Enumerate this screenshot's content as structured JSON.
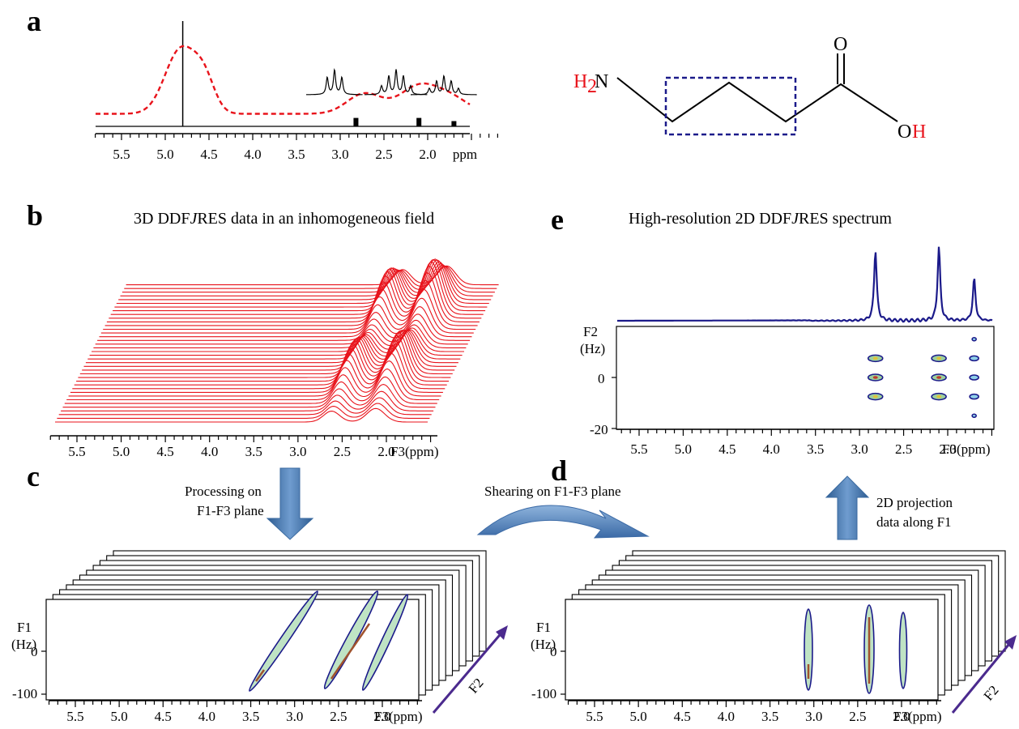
{
  "panels": {
    "a": {
      "letter": "a",
      "axis": {
        "ticks": [
          "5.5",
          "5.0",
          "4.5",
          "4.0",
          "3.5",
          "3.0",
          "2.5",
          "2.0",
          "ppm"
        ]
      },
      "spectrum": {
        "x_range_ppm": [
          5.8,
          1.15
        ],
        "solid_peaks": [
          {
            "ppm": 4.8,
            "height": 1.0
          },
          {
            "ppm": 2.82,
            "height": 0.08
          },
          {
            "ppm": 2.1,
            "height": 0.08
          },
          {
            "ppm": 1.7,
            "height": 0.05
          }
        ],
        "dashed_bands": [
          {
            "ppm": 4.82,
            "height": 0.64,
            "width": 0.18
          },
          {
            "ppm": 4.55,
            "height": 0.28,
            "width": 0.12
          },
          {
            "ppm": 2.72,
            "height": 0.2,
            "width": 0.2
          },
          {
            "ppm": 2.1,
            "height": 0.27,
            "width": 0.22
          },
          {
            "ppm": 1.72,
            "height": 0.14,
            "width": 0.2
          }
        ],
        "multiplet_insets": [
          {
            "center_ppm": 2.82,
            "lines": 3
          },
          {
            "center_ppm": 2.12,
            "lines": 5
          },
          {
            "center_ppm": 1.68,
            "lines": 5
          }
        ]
      },
      "molecule": {
        "left_group_sub": "H",
        "left_group_subscript": "2",
        "left_group_atom": "N",
        "carbonyl_o": "O",
        "hydroxyl_o": "O",
        "hydroxyl_h": "H"
      }
    },
    "b": {
      "letter": "b",
      "title_pre": "3D DDF",
      "title_j": "J",
      "title_post": "RES data in an inhomogeneous field",
      "axis": {
        "ticks": [
          "5.5",
          "5.0",
          "4.5",
          "4.0",
          "3.5",
          "3.0",
          "2.5",
          "2.0"
        ],
        "label": "F3(ppm)"
      },
      "stack": {
        "slices": 38,
        "peaks_ppm": [
          2.62,
          2.12
        ]
      }
    },
    "c": {
      "letter": "c",
      "arrow_label_1": "Processing on",
      "arrow_label_2": "F1-F3 plane",
      "y_label_1": "F1",
      "y_label_2": "(Hz)",
      "y_ticks": [
        "0",
        "-100"
      ],
      "axis": {
        "ticks": [
          "5.5",
          "5.0",
          "4.5",
          "4.0",
          "3.5",
          "3.0",
          "2.5",
          "2.0"
        ],
        "label": "F3(ppm)"
      },
      "diag_axis_label": "F2",
      "tilted_peaks_ppm": [
        2.82,
        2.12,
        1.72
      ]
    },
    "shear": {
      "label": "Shearing on F1-F3 plane"
    },
    "d": {
      "letter": "d",
      "y_label_1": "F1",
      "y_label_2": "(Hz)",
      "y_ticks": [
        "0",
        "-100"
      ],
      "axis": {
        "ticks": [
          "5.5",
          "5.0",
          "4.5",
          "4.0",
          "3.5",
          "3.0",
          "2.5",
          "2.0"
        ],
        "label": "F3(ppm)"
      },
      "diag_axis_label": "F2",
      "arrow_label_1": "2D projection",
      "arrow_label_2": "data along F1",
      "vertical_peaks_ppm": [
        2.82,
        2.12,
        1.72
      ]
    },
    "e": {
      "letter": "e",
      "title_pre": "High-resolution 2D DDF",
      "title_j": "J",
      "title_post": "RES spectrum",
      "y_label_1": "F2",
      "y_label_2": "(Hz)",
      "y_ticks": [
        "0",
        "-20"
      ],
      "axis": {
        "ticks": [
          "5.5",
          "5.0",
          "4.5",
          "4.0",
          "3.5",
          "3.0",
          "2.5",
          "2.0"
        ],
        "label": "F3(ppm)"
      },
      "projection_peaks": [
        {
          "ppm": 2.82,
          "height": 1.0
        },
        {
          "ppm": 2.1,
          "height": 1.05
        },
        {
          "ppm": 1.7,
          "height": 0.6
        }
      ],
      "contour_columns": [
        {
          "ppm": 2.82,
          "j_hz": [
            7.5,
            0,
            -7.5
          ]
        },
        {
          "ppm": 2.1,
          "j_hz": [
            7.5,
            0,
            -7.5
          ]
        },
        {
          "ppm": 1.7,
          "j_hz": [
            15,
            7.5,
            0,
            -7.5,
            -15
          ]
        }
      ]
    }
  },
  "colors": {
    "red": "#e8131b",
    "navy": "#1b1a8a",
    "arrow_blue": "#4a7bb5",
    "purple": "#4b2a8e",
    "contour_fill": "#bfe3c4",
    "contour_core": "#a0522d"
  }
}
